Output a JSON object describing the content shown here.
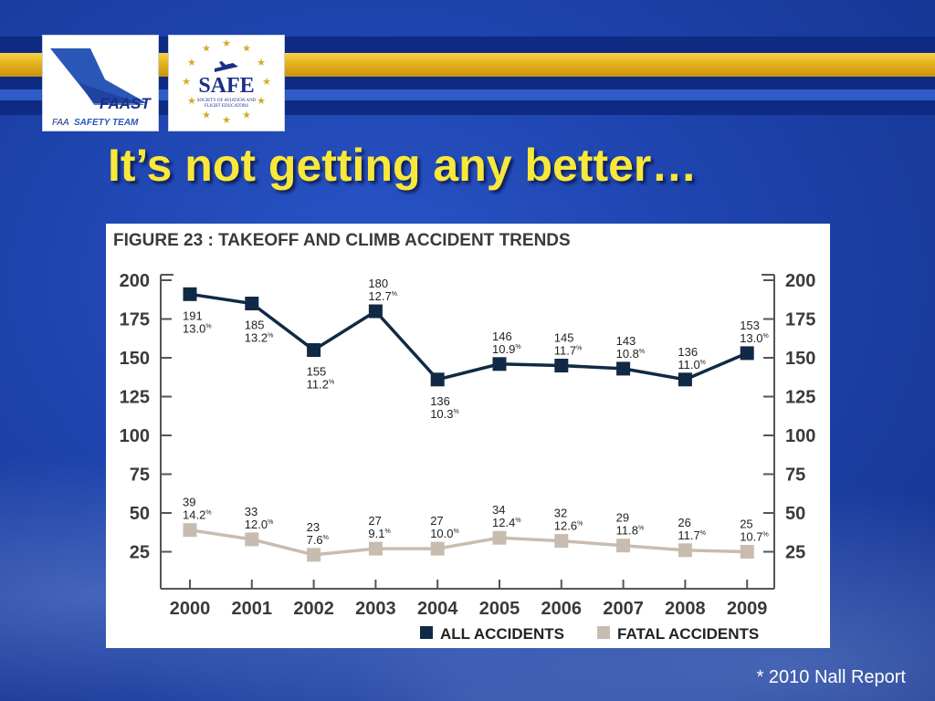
{
  "slide": {
    "title": "It’s not getting any better…",
    "footnote": "* 2010 Nall Report"
  },
  "logos": {
    "faast": {
      "brand": "FAAST",
      "caption_prefix": "FAA",
      "caption": "SAFETY TEAM"
    },
    "safe": {
      "brand": "SAFE",
      "caption_line1": "SOCIETY OF AVIATION AND",
      "caption_line2": "FLIGHT EDUCATORS"
    }
  },
  "colors": {
    "title": "#f8e83a",
    "all_accidents": "#102a45",
    "fatal_accidents": "#c8bcb0",
    "axis": "#555555"
  },
  "chart_data": {
    "type": "line",
    "title": "FIGURE 23 : TAKEOFF AND CLIMB ACCIDENT TRENDS",
    "categories": [
      "2000",
      "2001",
      "2002",
      "2003",
      "2004",
      "2005",
      "2006",
      "2007",
      "2008",
      "2009"
    ],
    "ylim": [
      0,
      200
    ],
    "yticks": [
      25,
      50,
      75,
      100,
      125,
      150,
      175,
      200
    ],
    "dual_y_axis": true,
    "grid": false,
    "legend": "bottom",
    "series": [
      {
        "name": "ALL ACCIDENTS",
        "marker": "square",
        "values": [
          191,
          185,
          155,
          180,
          136,
          146,
          145,
          143,
          136,
          153
        ],
        "percents": [
          "13.0",
          "13.2",
          "11.2",
          "12.7",
          "10.3",
          "10.9",
          "11.7",
          "10.8",
          "11.0",
          "13.0"
        ],
        "label_side": [
          "below",
          "below",
          "below",
          "above",
          "below",
          "above",
          "above",
          "above",
          "above",
          "above"
        ]
      },
      {
        "name": "FATAL ACCIDENTS",
        "marker": "square",
        "values": [
          39,
          33,
          23,
          27,
          27,
          34,
          32,
          29,
          26,
          25
        ],
        "percents": [
          "14.2",
          "12.0",
          "7.6",
          "9.1",
          "10.0",
          "12.4",
          "12.6",
          "11.8",
          "11.7",
          "10.7"
        ],
        "label_side": [
          "above",
          "above",
          "above",
          "above",
          "above",
          "above",
          "above",
          "above",
          "above",
          "above"
        ]
      }
    ]
  }
}
